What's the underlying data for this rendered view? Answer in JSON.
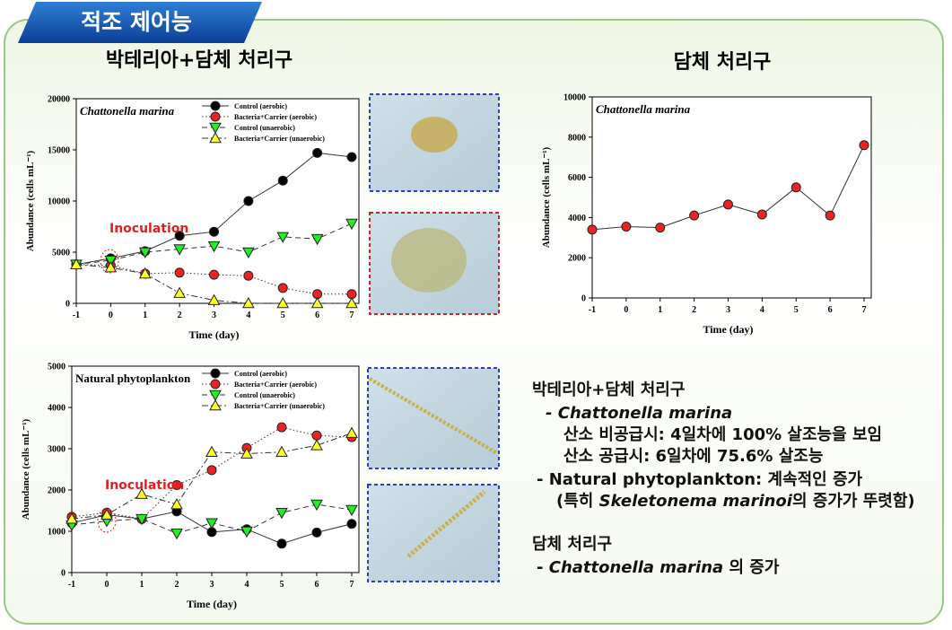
{
  "header": {
    "title": "적조 제어능"
  },
  "chart_data": [
    {
      "type": "line",
      "title": "박테리아+담체 처리구",
      "panel_label": "Chattonella marina",
      "x_label": "Time (day)",
      "y_label": "Abundance (cells mL⁻¹)",
      "annotation": "Inoculation",
      "x": [
        -1,
        0,
        1,
        2,
        3,
        4,
        5,
        6,
        7
      ],
      "xlim": [
        -1,
        7
      ],
      "xticks": [
        -1,
        0,
        1,
        2,
        3,
        4,
        5,
        6,
        7
      ],
      "ylim": [
        0,
        20000
      ],
      "yticks": [
        0,
        5000,
        10000,
        15000,
        20000
      ],
      "series": [
        {
          "name": "Control (aerobic)",
          "color": "#000000",
          "marker": "circle",
          "linestyle": "solid",
          "values": [
            3800,
            4400,
            5100,
            6600,
            7000,
            10000,
            12000,
            14700,
            14300
          ]
        },
        {
          "name": "Bacteria+Carrier (aerobic)",
          "color": "#ee2222",
          "marker": "circle",
          "linestyle": "dotted",
          "values": [
            3800,
            3700,
            2900,
            3000,
            2800,
            2700,
            1500,
            900,
            900
          ]
        },
        {
          "name": "Control (unaerobic)",
          "color": "#22ee22",
          "marker": "triangle-down",
          "linestyle": "dashed",
          "values": [
            3800,
            4200,
            5000,
            5300,
            5600,
            5000,
            6500,
            6300,
            7800
          ]
        },
        {
          "name": "Bacteria+Carrier (unaerobic)",
          "color": "#ffff22",
          "marker": "triangle-up",
          "linestyle": "dashdot",
          "values": [
            3800,
            3500,
            2900,
            1000,
            300,
            0,
            0,
            0,
            0
          ]
        }
      ]
    },
    {
      "type": "line",
      "panel_label": "Natural phytoplankton",
      "x_label": "Time (day)",
      "y_label": "Abundance (cells mL⁻¹)",
      "annotation": "Inoculation",
      "x": [
        -1,
        0,
        1,
        2,
        3,
        4,
        5,
        6,
        7
      ],
      "xlim": [
        -1,
        7
      ],
      "xticks": [
        -1,
        0,
        1,
        2,
        3,
        4,
        5,
        6,
        7
      ],
      "ylim": [
        0,
        5000
      ],
      "yticks": [
        0,
        1000,
        2000,
        3000,
        4000,
        5000
      ],
      "series": [
        {
          "name": "Control (aerobic)",
          "color": "#000000",
          "marker": "circle",
          "linestyle": "solid",
          "values": [
            1200,
            1400,
            1300,
            1480,
            980,
            1050,
            700,
            970,
            1180
          ]
        },
        {
          "name": "Bacteria+Carrier (aerobic)",
          "color": "#ee2222",
          "marker": "circle",
          "linestyle": "dotted",
          "values": [
            1350,
            1450,
            1300,
            2120,
            2480,
            3020,
            3520,
            3320,
            3280
          ]
        },
        {
          "name": "Control (unaerobic)",
          "color": "#22ee22",
          "marker": "triangle-down",
          "linestyle": "dashed",
          "values": [
            1150,
            1250,
            1300,
            950,
            1200,
            1000,
            1450,
            1650,
            1520
          ]
        },
        {
          "name": "Bacteria+Carrier (unaerobic)",
          "color": "#ffff22",
          "marker": "triangle-up",
          "linestyle": "dashdot",
          "values": [
            1300,
            1400,
            1900,
            1650,
            2920,
            2880,
            2920,
            3080,
            3380
          ]
        }
      ]
    },
    {
      "type": "line",
      "title": "담체 처리구",
      "panel_label": "Chattonella marina",
      "x_label": "Time (day)",
      "y_label": "Abundance (cells mL⁻¹)",
      "x": [
        -1,
        0,
        1,
        2,
        3,
        4,
        5,
        6,
        7
      ],
      "xlim": [
        -1,
        7
      ],
      "xticks": [
        -1,
        0,
        1,
        2,
        3,
        4,
        5,
        6,
        7
      ],
      "ylim": [
        0,
        10000
      ],
      "yticks": [
        0,
        2000,
        4000,
        6000,
        8000,
        10000
      ],
      "series": [
        {
          "color": "#ee2222",
          "marker": "circle",
          "linestyle": "solid",
          "values": [
            3400,
            3550,
            3500,
            4100,
            4650,
            4150,
            5500,
            4100,
            7600
          ]
        }
      ]
    }
  ],
  "summary": {
    "heading1": "박테리아+담체 처리구",
    "species1": "- Chattonella marina",
    "line1": "산소 비공급시: 4일차에 100% 살조능을 보임",
    "line2": "산소 공급시: 6일차에 75.6% 살조능",
    "line3": "- Natural phytoplankton: 계속적인 증가",
    "line4": [
      "(특히 ",
      "Skeletonema marinoi",
      "의 증가가 뚜렷함)"
    ],
    "heading2": "담체 처리구",
    "line5": [
      "- ",
      "Chattonella marina",
      " 의 증가"
    ]
  }
}
